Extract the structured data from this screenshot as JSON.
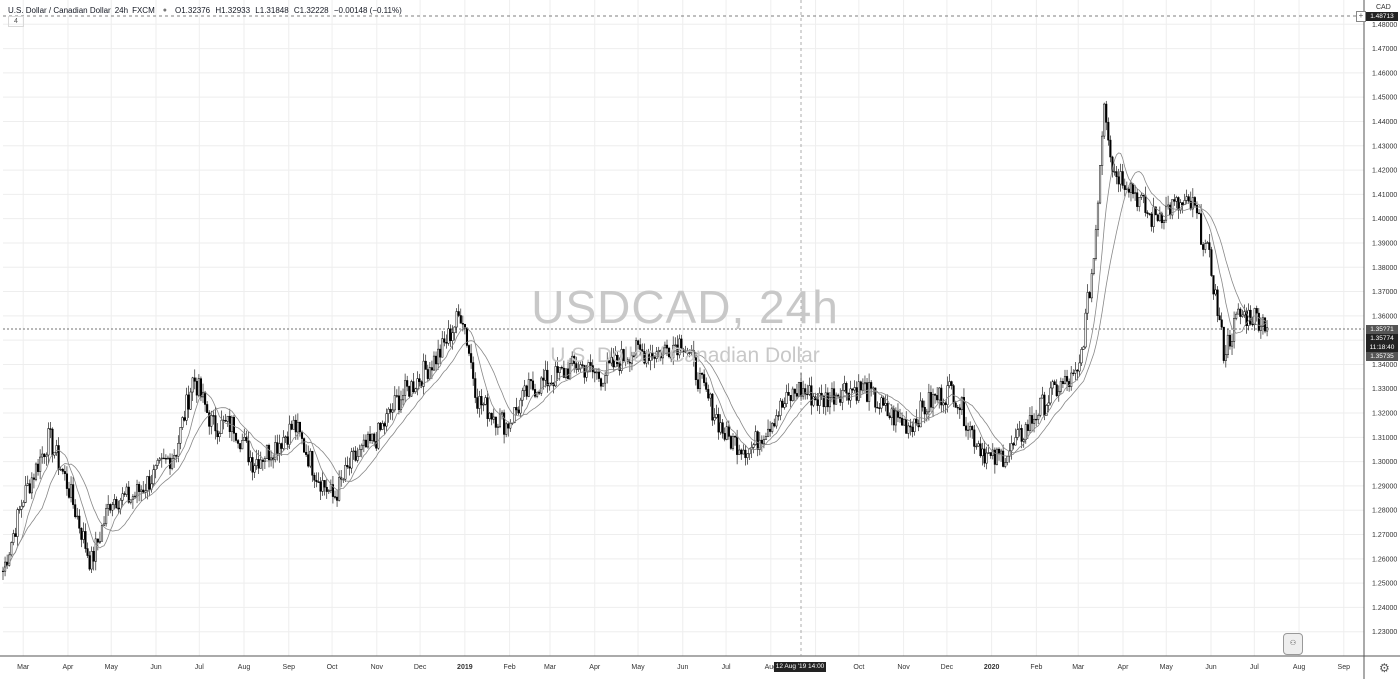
{
  "header": {
    "symbol": "U.S. Dollar / Canadian Dollar",
    "interval": "24h",
    "exchange": "FXCM",
    "open": "O1.32376",
    "high": "H1.32933",
    "low": "L1.31848",
    "close": "C1.32228",
    "change": "−0.00148 (−0.11%)",
    "indicator_toggle": "4"
  },
  "watermark": {
    "title": "USDCAD, 24h",
    "subtitle": "U.S. Dollar / Canadian Dollar"
  },
  "axis": {
    "currency": "CAD"
  },
  "labels": {
    "top_price": "1.48713",
    "last_price": "1.35774",
    "countdown": "11:18:40",
    "ma_value_1": "1.35?71",
    "ma_value_2": "1.35735",
    "crosshair_date": "12 Aug '19  14:00"
  },
  "colors": {
    "candle": "#000000",
    "grid": "#eeeeee",
    "ma": "#888888",
    "label_bg": "#222222"
  },
  "chart_data": {
    "type": "candlestick",
    "title": "USDCAD, 24h",
    "subtitle": "U.S. Dollar / Canadian Dollar",
    "ylim": [
      1.22,
      1.49
    ],
    "y_ticks": [
      "1.23000",
      "1.24000",
      "1.25000",
      "1.26000",
      "1.27000",
      "1.28000",
      "1.29000",
      "1.30000",
      "1.31000",
      "1.32000",
      "1.33000",
      "1.34000",
      "1.35000",
      "1.36000",
      "1.37000",
      "1.38000",
      "1.39000",
      "1.40000",
      "1.41000",
      "1.42000",
      "1.43000",
      "1.44000",
      "1.45000",
      "1.46000",
      "1.47000",
      "1.48000"
    ],
    "x_ticks": [
      "Mar",
      "Apr",
      "May",
      "Jun",
      "Jul",
      "Aug",
      "Sep",
      "Oct",
      "Nov",
      "Dec",
      "2019",
      "Feb",
      "Mar",
      "Apr",
      "May",
      "Jun",
      "Jul",
      "Aug",
      "Sep",
      "Oct",
      "Nov",
      "Dec",
      "2020",
      "Feb",
      "Mar",
      "Apr",
      "May",
      "Jun",
      "Jul",
      "Aug",
      "Sep"
    ],
    "x_range": [
      "2018-02-15",
      "2020-09-15"
    ],
    "series": [
      {
        "name": "USDCAD",
        "points": [
          [
            "2018-02-15",
            1.255
          ],
          [
            "2018-03-01",
            1.285
          ],
          [
            "2018-03-19",
            1.31
          ],
          [
            "2018-04-01",
            1.29
          ],
          [
            "2018-04-17",
            1.258
          ],
          [
            "2018-05-01",
            1.285
          ],
          [
            "2018-05-15",
            1.285
          ],
          [
            "2018-06-01",
            1.295
          ],
          [
            "2018-06-15",
            1.305
          ],
          [
            "2018-06-27",
            1.335
          ],
          [
            "2018-07-10",
            1.315
          ],
          [
            "2018-07-25",
            1.315
          ],
          [
            "2018-08-07",
            1.3
          ],
          [
            "2018-08-20",
            1.305
          ],
          [
            "2018-09-05",
            1.315
          ],
          [
            "2018-09-20",
            1.295
          ],
          [
            "2018-10-02",
            1.285
          ],
          [
            "2018-10-15",
            1.3
          ],
          [
            "2018-11-01",
            1.31
          ],
          [
            "2018-11-15",
            1.325
          ],
          [
            "2018-12-01",
            1.335
          ],
          [
            "2018-12-15",
            1.345
          ],
          [
            "2018-12-30",
            1.362
          ],
          [
            "2019-01-10",
            1.325
          ],
          [
            "2019-01-30",
            1.315
          ],
          [
            "2019-02-15",
            1.33
          ],
          [
            "2019-03-05",
            1.335
          ],
          [
            "2019-03-20",
            1.34
          ],
          [
            "2019-04-05",
            1.335
          ],
          [
            "2019-04-25",
            1.345
          ],
          [
            "2019-05-15",
            1.345
          ],
          [
            "2019-06-01",
            1.35
          ],
          [
            "2019-06-15",
            1.33
          ],
          [
            "2019-07-01",
            1.31
          ],
          [
            "2019-07-18",
            1.305
          ],
          [
            "2019-08-05",
            1.32
          ],
          [
            "2019-08-20",
            1.33
          ],
          [
            "2019-09-05",
            1.325
          ],
          [
            "2019-09-20",
            1.33
          ],
          [
            "2019-10-05",
            1.33
          ],
          [
            "2019-10-20",
            1.32
          ],
          [
            "2019-11-05",
            1.315
          ],
          [
            "2019-11-20",
            1.325
          ],
          [
            "2019-12-05",
            1.33
          ],
          [
            "2019-12-20",
            1.31
          ],
          [
            "2020-01-01",
            1.3
          ],
          [
            "2020-01-15",
            1.305
          ],
          [
            "2020-02-01",
            1.32
          ],
          [
            "2020-02-15",
            1.33
          ],
          [
            "2020-03-01",
            1.335
          ],
          [
            "2020-03-12",
            1.385
          ],
          [
            "2020-03-19",
            1.45
          ],
          [
            "2020-03-25",
            1.42
          ],
          [
            "2020-04-05",
            1.415
          ],
          [
            "2020-04-20",
            1.4
          ],
          [
            "2020-05-05",
            1.405
          ],
          [
            "2020-05-20",
            1.405
          ],
          [
            "2020-06-01",
            1.38
          ],
          [
            "2020-06-10",
            1.345
          ],
          [
            "2020-06-20",
            1.36
          ],
          [
            "2020-07-01",
            1.36
          ],
          [
            "2020-07-10",
            1.357
          ]
        ]
      },
      {
        "name": "MA short"
      },
      {
        "name": "MA long"
      }
    ]
  }
}
